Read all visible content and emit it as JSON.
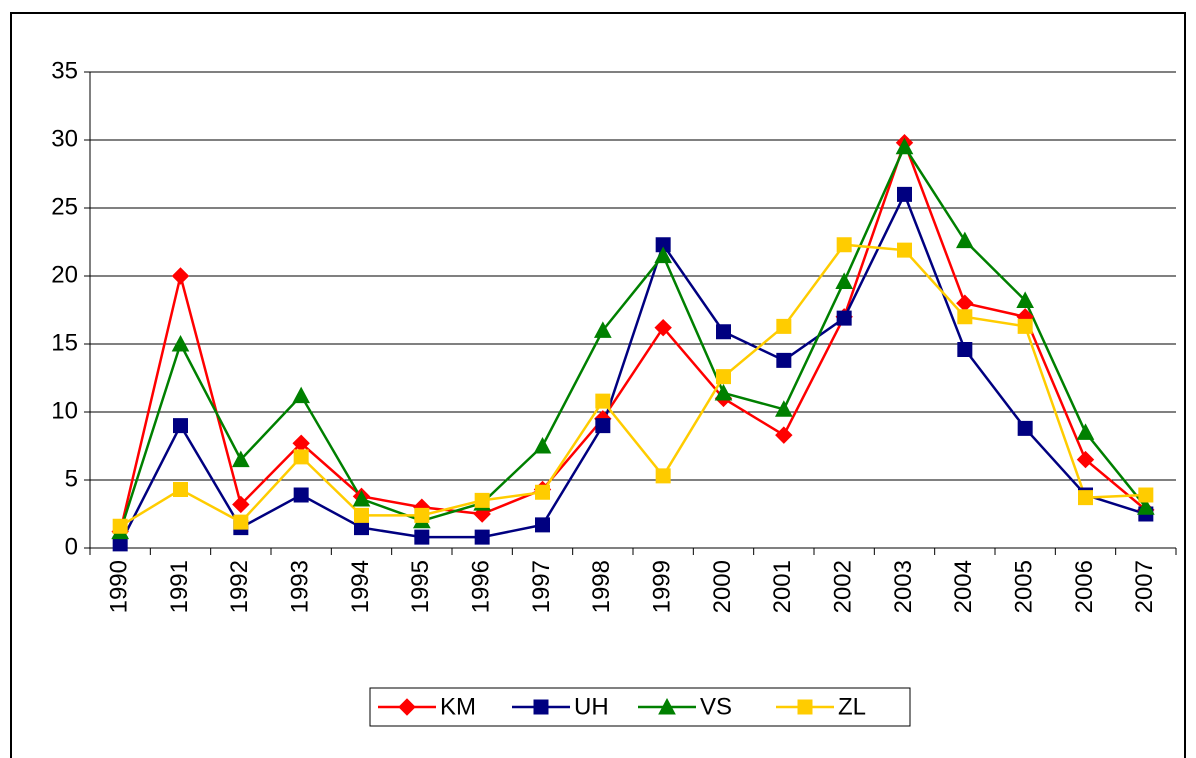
{
  "chart_data": {
    "type": "line",
    "categories": [
      "1990",
      "1991",
      "1992",
      "1993",
      "1994",
      "1995",
      "1996",
      "1997",
      "1998",
      "1999",
      "2000",
      "2001",
      "2002",
      "2003",
      "2004",
      "2005",
      "2006",
      "2007"
    ],
    "series": [
      {
        "name": "KM",
        "color": "#ff0000",
        "marker": "diamond",
        "values": [
          1.2,
          20,
          3.2,
          7.7,
          3.8,
          3.0,
          2.5,
          4.3,
          9.5,
          16.2,
          11,
          8.3,
          17,
          29.8,
          18,
          17,
          6.5,
          2.8
        ]
      },
      {
        "name": "UH",
        "color": "#000080",
        "marker": "square",
        "values": [
          0.3,
          9,
          1.5,
          3.9,
          1.5,
          0.8,
          0.8,
          1.7,
          9,
          22.3,
          15.9,
          13.8,
          16.9,
          26,
          14.6,
          8.8,
          3.9,
          2.5
        ]
      },
      {
        "name": "VS",
        "color": "#008000",
        "marker": "triangle",
        "values": [
          1.2,
          15,
          6.5,
          11.2,
          3.6,
          2,
          3.3,
          7.5,
          16,
          21.5,
          11.4,
          10.2,
          19.6,
          29.5,
          22.6,
          18.2,
          8.5,
          3
        ]
      },
      {
        "name": "ZL",
        "color": "#ffcc00",
        "marker": "square",
        "values": [
          1.6,
          4.3,
          1.9,
          6.7,
          2.4,
          2.4,
          3.5,
          4.1,
          10.8,
          5.3,
          12.6,
          16.3,
          22.3,
          21.9,
          17,
          16.3,
          3.7,
          3.9
        ]
      }
    ],
    "ylim": [
      0,
      35
    ],
    "yticks": [
      0,
      5,
      10,
      15,
      20,
      25,
      30,
      35
    ],
    "grid": true,
    "legend": "bottom"
  }
}
